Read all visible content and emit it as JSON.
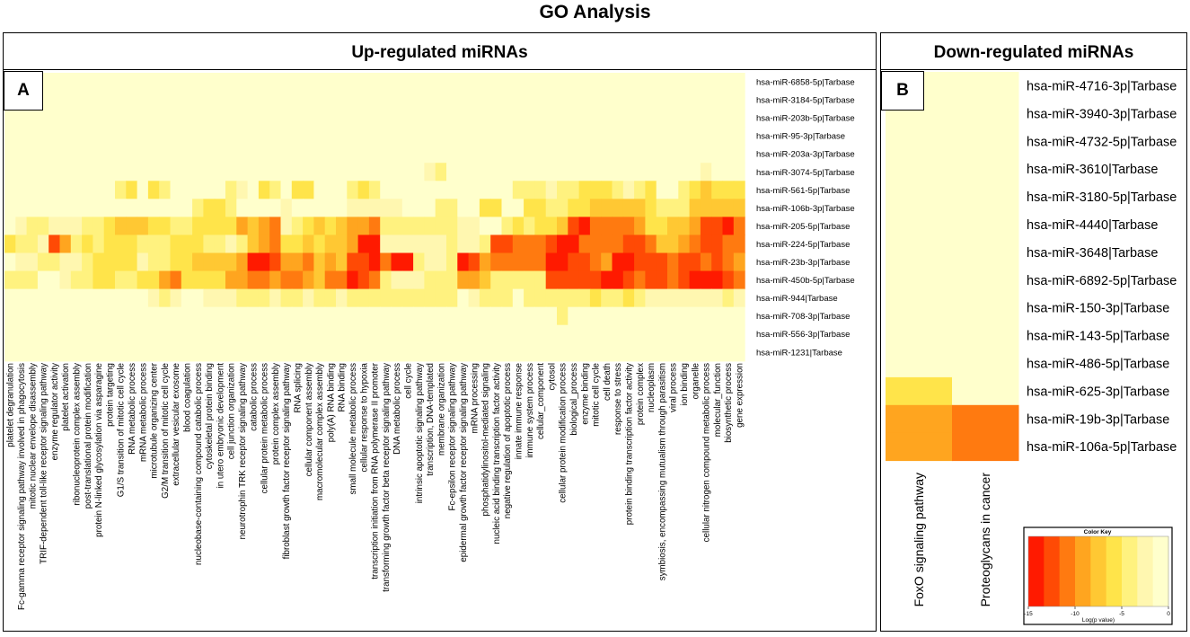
{
  "page_title": "GO Analysis",
  "panel_a": {
    "title": "Up-regulated miRNAs",
    "badge": "A"
  },
  "panel_b": {
    "title": "Down-regulated miRNAs",
    "badge": "B"
  },
  "palette": [
    "#ff1a00",
    "#ff4a05",
    "#ff7a10",
    "#ffa51f",
    "#ffc833",
    "#ffe44a",
    "#fff27f",
    "#fff7b0",
    "#ffffcc"
  ],
  "chart_data": [
    {
      "type": "heatmap",
      "title": "Up-regulated miRNAs",
      "rows": [
        "hsa-miR-6858-5p|Tarbase",
        "hsa-miR-3184-5p|Tarbase",
        "hsa-miR-203b-5p|Tarbase",
        "hsa-miR-95-3p|Tarbase",
        "hsa-miR-203a-3p|Tarbase",
        "hsa-miR-3074-5p|Tarbase",
        "hsa-miR-561-5p|Tarbase",
        "hsa-miR-106b-3p|Tarbase",
        "hsa-miR-205-5p|Tarbase",
        "hsa-miR-224-5p|Tarbase",
        "hsa-miR-23b-3p|Tarbase",
        "hsa-miR-450b-5p|Tarbase",
        "hsa-miR-944|Tarbase",
        "hsa-miR-708-3p|Tarbase",
        "hsa-miR-556-3p|Tarbase",
        "hsa-miR-1231|Tarbase"
      ],
      "columns": [
        "platelet degranulation",
        "Fc-gamma receptor signaling pathway involved in phagocytosis",
        "mitotic nuclear envelope disassembly",
        "TRIF-dependent toll-like receptor signaling pathway",
        "enzyme regulator activity",
        "platelet activation",
        "ribonucleoprotein complex assembly",
        "post-translational protein modification",
        "protein N-linked glycosylation via asparagine",
        "protein targeting",
        "G1/S transition of mitotic cell cycle",
        "RNA metabolic process",
        "mRNA metabolic process",
        "microtubule organizing center",
        "G2/M transition of mitotic cell cycle",
        "extracellular vesicular exosome",
        "blood coagulation",
        "nucleobase-containing compound catabolic process",
        "cytoskeletal protein binding",
        "in utero embryonic development",
        "cell junction organization",
        "neurotrophin TRK receptor signaling pathway",
        "catabolic process",
        "cellular protein metabolic process",
        "protein complex assembly",
        "fibroblast growth factor receptor signaling pathway",
        "RNA splicing",
        "cellular component assembly",
        "macromolecular complex assembly",
        "poly(A) RNA binding",
        "RNA binding",
        "small molecule metabolic process",
        "cellular response to hypoxia",
        "transcription initiation from RNA polymerase II promoter",
        "transforming growth factor beta receptor signaling pathway",
        "DNA metabolic process",
        "cell cycle",
        "intrinsic apoptotic signaling pathway",
        "transcription, DNA-templated",
        "membrane organization",
        "Fc-epsilon receptor signaling pathway",
        "epidermal growth factor receptor signaling pathway",
        "mRNA processing",
        "phosphatidylinositol-mediated signaling",
        "nucleic acid binding transcription factor activity",
        "negative regulation of apoptotic process",
        "innate immune response",
        "immune system process",
        "cellular_component",
        "cytosol",
        "cellular protein modification process",
        "biological_process",
        "enzyme binding",
        "mitotic cell cycle",
        "cell death",
        "response to stress",
        "protein binding transcription factor activity",
        "protein complex",
        "nucleoplasm",
        "symbiosis, encompassing mutualism through parasitism",
        "viral process",
        "ion binding",
        "organelle",
        "cellular nitrogen compound metabolic process",
        "molecular_function",
        "biosynthetic process",
        "gene expression"
      ],
      "values_level": [
        "8888888888888888888888888888888888888888888888888888888888888888888",
        "8888888888888888888888888888888888888888888888888888888888888888888",
        "8888888888888888888888888888888888888888888888888888888888888888888",
        "8888888888888888888888888888888888888888888888888888888888888888888",
        "8888888888888888888888888888888888888888888888888888888888888888888",
        "8888888888888888888888888888888888888876888888888888888888888887888",
        "8888888888658568888867856855888656888888888888666766555676588654555",
        "8888888888888888865568888788888777778886688558855665544444566644444",
        "8766777665444556655553432765454332666666677886565541022223554431102",
        "5667136565556665556676432554544300777777677611222100222211244321122",
        "8776677655557665544443001332434110200677601322222001123001112112123",
        "6668876655665532555533223223422012677766633466666111110012112100012",
        "8888888888888767887776667667667666666666687666866666656656777777767",
        "8888888888888888888888888888888888888888888888888868888888888888888",
        "8888888888888888888888888888888888888888888888888888888888888888888",
        "8888888888888888888888888888888888888888888888888888888888888888888"
      ]
    },
    {
      "type": "heatmap",
      "title": "Down-regulated miRNAs",
      "rows": [
        "hsa-miR-4716-3p|Tarbase",
        "hsa-miR-3940-3p|Tarbase",
        "hsa-miR-4732-5p|Tarbase",
        "hsa-miR-3610|Tarbase",
        "hsa-miR-3180-5p|Tarbase",
        "hsa-miR-4440|Tarbase",
        "hsa-miR-3648|Tarbase",
        "hsa-miR-6892-5p|Tarbase",
        "hsa-miR-150-3p|Tarbase",
        "hsa-miR-143-5p|Tarbase",
        "hsa-miR-486-5p|Tarbase",
        "hsa-miR-625-3p|Tarbase",
        "hsa-miR-19b-3p|Tarbase",
        "hsa-miR-106a-5p|Tarbase"
      ],
      "columns": [
        "FoxO signaling pathway",
        "Proteoglycans in cancer"
      ],
      "values_level": [
        "88",
        "88",
        "88",
        "88",
        "88",
        "88",
        "88",
        "88",
        "88",
        "88",
        "88",
        "58",
        "32",
        "32"
      ]
    }
  ],
  "color_key": {
    "title": "Color Key",
    "xlabel": "Log(p value)",
    "ticks": [
      "-15",
      "-10",
      "-5",
      "0"
    ],
    "range": [
      -15,
      0
    ]
  }
}
